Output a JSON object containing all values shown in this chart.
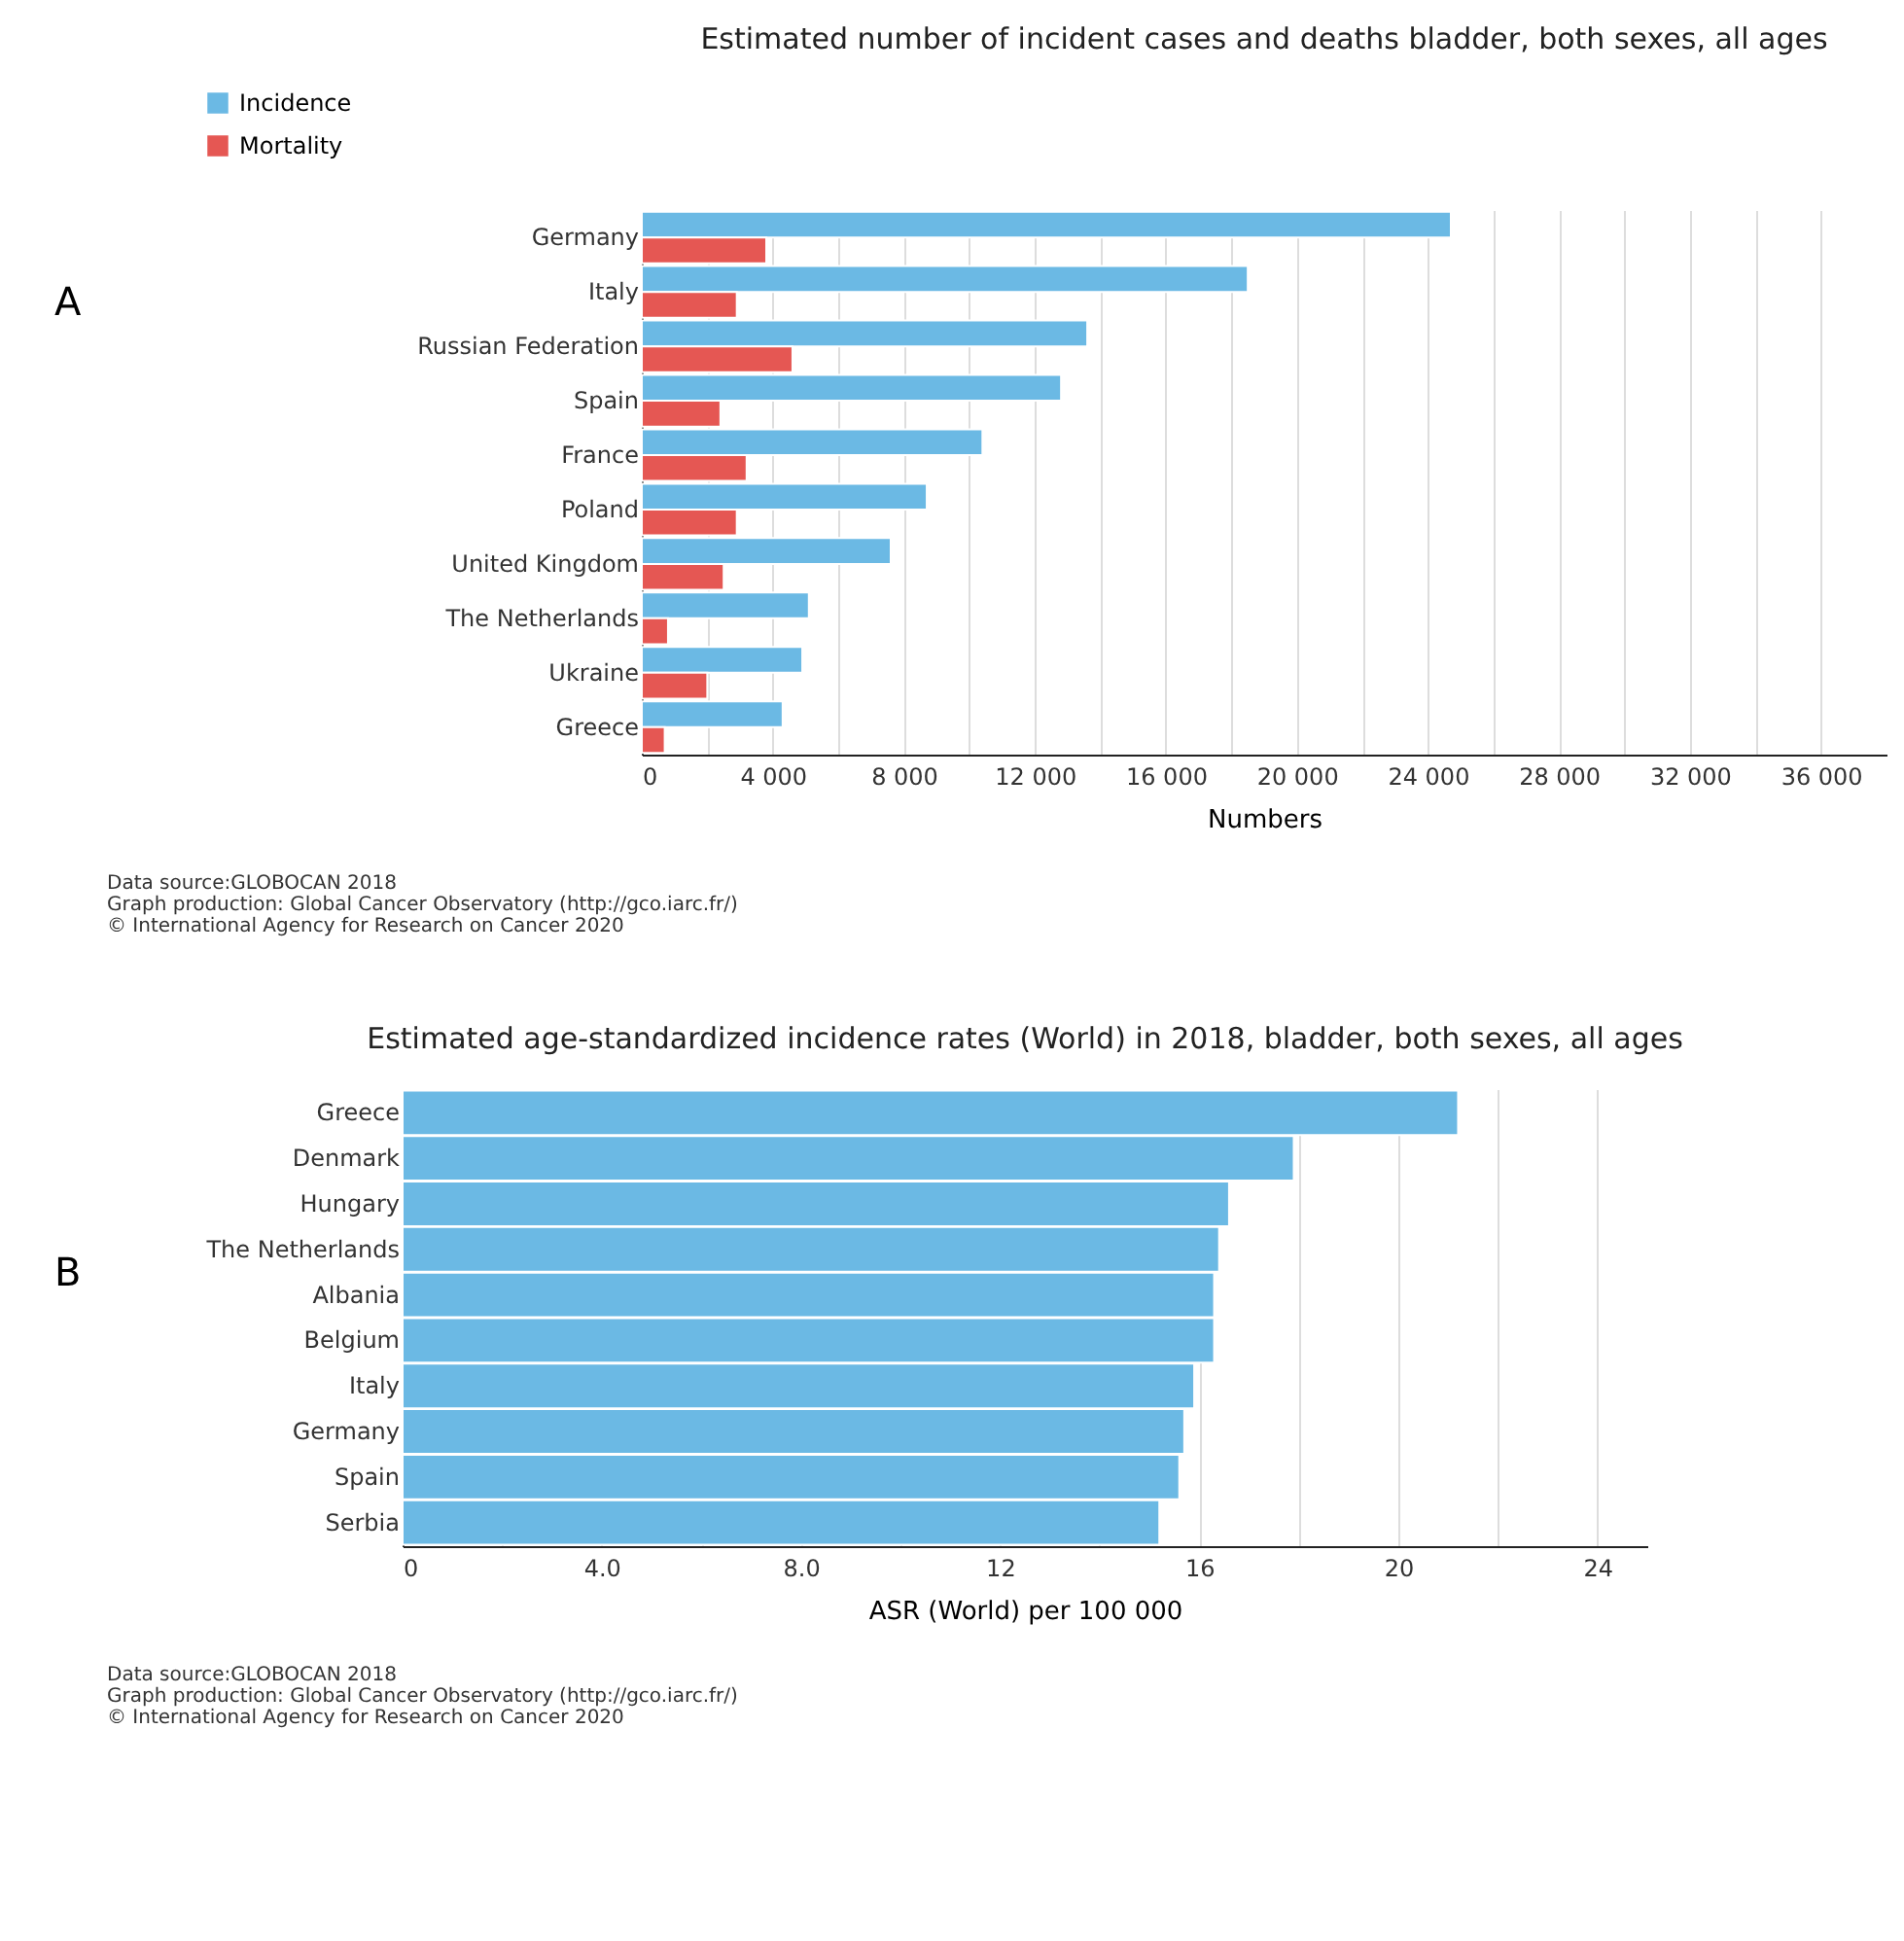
{
  "chart_data": [
    {
      "type": "bar",
      "orientation": "horizontal",
      "title": "Estimated number of incident cases and deaths bladder, both sexes, all ages",
      "xlabel": "Numbers",
      "categories": [
        "Germany",
        "Italy",
        "Russian Federation",
        "Spain",
        "France",
        "Poland",
        "United Kingdom",
        "The Netherlands",
        "Ukraine",
        "Greece"
      ],
      "series": [
        {
          "name": "Incidence",
          "color": "#6bb9e4",
          "values": [
            24700,
            18500,
            13600,
            12800,
            10400,
            8700,
            7600,
            5100,
            4900,
            4300
          ]
        },
        {
          "name": "Mortality",
          "color": "#e55753",
          "values": [
            3800,
            2900,
            4600,
            2400,
            3200,
            2900,
            2500,
            800,
            2000,
            700
          ]
        }
      ],
      "xlim": [
        0,
        38000
      ],
      "xticks": [
        0,
        {
          "value": 2000,
          "label": null
        },
        {
          "value": 4000,
          "label": "4 000"
        },
        {
          "value": 6000,
          "label": null
        },
        {
          "value": 8000,
          "label": "8 000"
        },
        {
          "value": 10000,
          "label": null
        },
        {
          "value": 12000,
          "label": "12 000"
        },
        {
          "value": 14000,
          "label": null
        },
        {
          "value": 16000,
          "label": "16 000"
        },
        {
          "value": 18000,
          "label": null
        },
        {
          "value": 20000,
          "label": "20 000"
        },
        {
          "value": 22000,
          "label": null
        },
        {
          "value": 24000,
          "label": "24 000"
        },
        {
          "value": 26000,
          "label": null
        },
        {
          "value": 28000,
          "label": "28 000"
        },
        {
          "value": 30000,
          "label": null
        },
        {
          "value": 32000,
          "label": "32 000"
        },
        {
          "value": 34000,
          "label": null
        },
        {
          "value": 36000,
          "label": "36 000"
        }
      ],
      "grid": "x",
      "legend": "top left",
      "annotations": [
        "A",
        "Data source:GLOBOCAN 2018",
        "Graph production: Global Cancer Observatory (http://gco.iarc.fr/)",
        "© International Agency for Research on Cancer 2020"
      ]
    },
    {
      "type": "bar",
      "orientation": "horizontal",
      "title": "Estimated age-standardized incidence rates (World) in 2018, bladder, both sexes, all ages",
      "xlabel": "ASR (World) per 100 000",
      "categories": [
        "Greece",
        "Denmark",
        "Hungary",
        "The Netherlands",
        "Albania",
        "Belgium",
        "Italy",
        "Germany",
        "Spain",
        "Serbia"
      ],
      "series": [
        {
          "color": "#6bb9e4",
          "values": [
            21.2,
            17.9,
            16.6,
            16.4,
            16.3,
            16.3,
            15.9,
            15.7,
            15.6,
            15.2
          ]
        }
      ],
      "xlim": [
        0,
        25
      ],
      "xticks": [
        0,
        {
          "value": 2,
          "label": null
        },
        {
          "value": 4,
          "label": "4.0"
        },
        {
          "value": 6,
          "label": null
        },
        {
          "value": 8,
          "label": "8.0"
        },
        {
          "value": 10,
          "label": null
        },
        12,
        {
          "value": 14,
          "label": null
        },
        16,
        {
          "value": 18,
          "label": null
        },
        20,
        {
          "value": 22,
          "label": null
        },
        24
      ],
      "grid": "x",
      "annotations": [
        "B",
        "Data source:GLOBOCAN 2018",
        "Graph production: Global Cancer Observatory (http://gco.iarc.fr/)",
        "© International Agency for Research on Cancer 2020"
      ]
    }
  ]
}
